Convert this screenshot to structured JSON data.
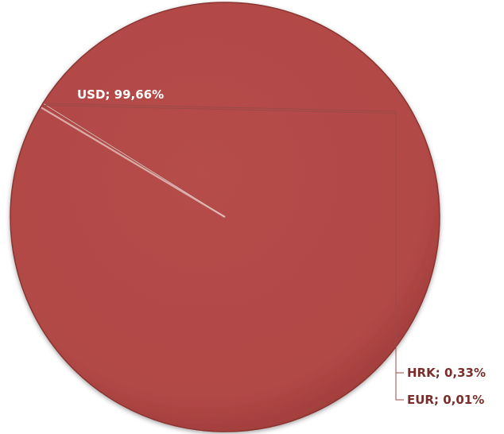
{
  "chart_data": {
    "type": "pie",
    "categories": [
      "USD",
      "HRK",
      "EUR"
    ],
    "values": [
      99.66,
      0.33,
      0.01
    ],
    "data_labels": [
      "USD; 99,66%",
      "HRK; 0,33%",
      "EUR; 0,01%"
    ],
    "title": "",
    "legend": "none",
    "colors": {
      "slice_fill": "#b44c4a",
      "slice_edge": "#8a3431",
      "separator_light": "#e6c2bd",
      "leader_line": "#9a4a46",
      "outside_label": "#7a2e2b",
      "inside_label": "#ffffff"
    }
  }
}
